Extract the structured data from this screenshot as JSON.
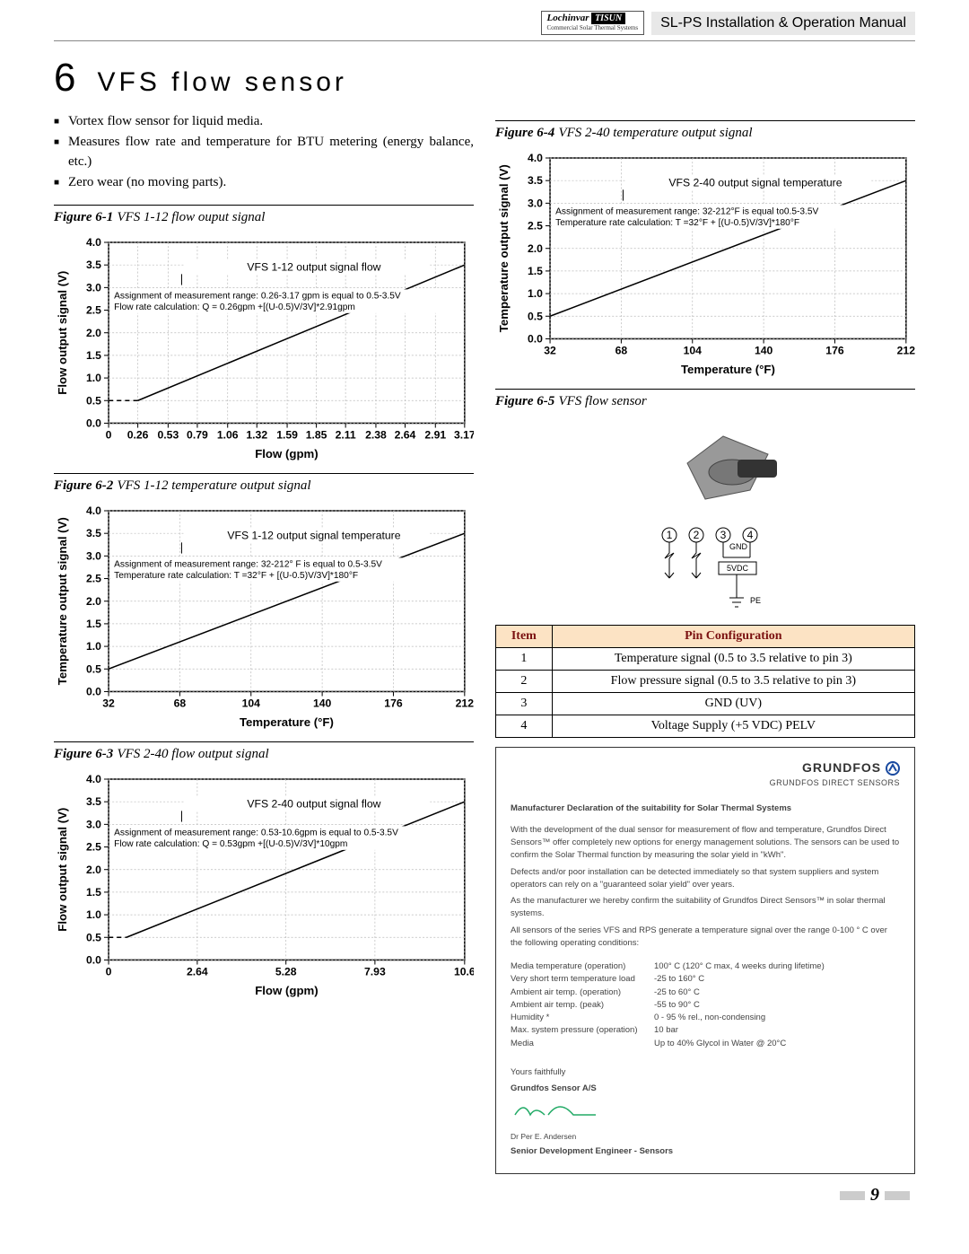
{
  "header": {
    "brand": "Lochinvar",
    "brand_sub": "Commercial Solar Thermal Systems",
    "tisun": "TISUN",
    "manual_title": "SL-PS Installation & Operation Manual"
  },
  "section": {
    "number": "6",
    "title": "VFS flow sensor"
  },
  "features": [
    "Vortex flow sensor for liquid media.",
    "Measures flow rate and temperature for BTU metering (energy balance, etc.)",
    "Zero wear (no moving parts)."
  ],
  "page_number": "9",
  "charts": {
    "c1": {
      "caption_bold": "Figure 6-1",
      "caption_italic": "VFS 1-12 flow ouput signal",
      "title_line": "VFS 1-12 output signal flow",
      "note1": "Assignment of measurement range: 0.26-3.17 gpm is equal to 0.5-3.5V",
      "note2": "Flow rate calculation: Q = 0.26gpm +[(U-0.5)V/3V]*2.91gpm",
      "xlabel": "Flow (gpm)",
      "ylabel": "Flow output signal (V)",
      "xticks": [
        "0",
        "0.26",
        "0.53",
        "0.79",
        "1.06",
        "1.32",
        "1.59",
        "1.85",
        "2.11",
        "2.38",
        "2.64",
        "2.91",
        "3.17"
      ],
      "yticks": [
        "0.0",
        "0.5",
        "1.0",
        "1.5",
        "2.0",
        "2.5",
        "3.0",
        "3.5",
        "4.0"
      ],
      "data": [
        [
          0.26,
          0.5
        ],
        [
          3.17,
          3.5
        ]
      ],
      "dash_extension": [
        [
          0,
          0.5
        ],
        [
          0.26,
          0.5
        ]
      ]
    },
    "c2": {
      "caption_bold": "Figure 6-2",
      "caption_italic": "VFS 1-12 temperature output signal",
      "title_line": "VFS 1-12 output signal temperature",
      "note1": "Assignment of measurement range: 32-212° F is equal to 0.5-3.5V",
      "note2": "Temperature rate calculation: T =32°F + [(U-0.5)V/3V]*180°F",
      "xlabel": "Temperature (°F)",
      "ylabel": "Temperature output signal (V)",
      "xticks": [
        "32",
        "68",
        "104",
        "140",
        "176",
        "212"
      ],
      "yticks": [
        "0.0",
        "0.5",
        "1.0",
        "1.5",
        "2.0",
        "2.5",
        "3.0",
        "3.5",
        "4.0"
      ],
      "data": [
        [
          32,
          0.5
        ],
        [
          212,
          3.5
        ]
      ]
    },
    "c3": {
      "caption_bold": "Figure 6-3",
      "caption_italic": "VFS 2-40 flow output signal",
      "title_line": "VFS 2-40 output signal flow",
      "note1": "Assignment of measurement range: 0.53-10.6gpm is equal to 0.5-3.5V",
      "note2": "Flow rate calculation: Q = 0.53gpm +[(U-0.5)V/3V]*10gpm",
      "xlabel": "Flow (gpm)",
      "ylabel": "Flow output signal (V)",
      "xticks": [
        "0",
        "2.64",
        "5.28",
        "7.93",
        "10.6"
      ],
      "yticks": [
        "0.0",
        "0.5",
        "1.0",
        "1.5",
        "2.0",
        "2.5",
        "3.0",
        "3.5",
        "4.0"
      ],
      "data": [
        [
          0.53,
          0.5
        ],
        [
          10.6,
          3.5
        ]
      ],
      "dash_extension": [
        [
          0,
          0.5
        ],
        [
          0.53,
          0.5
        ]
      ]
    },
    "c4": {
      "caption_bold": "Figure 6-4",
      "caption_italic": "VFS 2-40 temperature output signal",
      "title_line": "VFS 2-40 output signal temperature",
      "note1": "Assignment of measurement range: 32-212°F is equal to0.5-3.5V",
      "note2": "Temperature rate calculation: T =32°F + [(U-0.5)V/3V]*180°F",
      "xlabel": "Temperature (°F)",
      "ylabel": "Temperature output signal (V)",
      "xticks": [
        "32",
        "68",
        "104",
        "140",
        "176",
        "212"
      ],
      "yticks": [
        "0.0",
        "0.5",
        "1.0",
        "1.5",
        "2.0",
        "2.5",
        "3.0",
        "3.5",
        "4.0"
      ],
      "data": [
        [
          32,
          0.5
        ],
        [
          212,
          3.5
        ]
      ]
    }
  },
  "fig5": {
    "caption_bold": "Figure 6-5",
    "caption_italic": "VFS flow sensor",
    "pins": [
      "①",
      "②",
      "③",
      "④"
    ],
    "gnd": "GND",
    "vdc": "5VDC",
    "pe": "PE"
  },
  "pin_table": {
    "headers": [
      "Item",
      "Pin Configuration"
    ],
    "rows": [
      [
        "1",
        "Temperature signal (0.5 to 3.5 relative to pin 3)"
      ],
      [
        "2",
        "Flow pressure signal (0.5 to 3.5 relative to pin 3)"
      ],
      [
        "3",
        "GND (UV)"
      ],
      [
        "4",
        "Voltage Supply (+5 VDC) PELV"
      ]
    ]
  },
  "declaration": {
    "logo": "GRUNDFOS",
    "logo_sub": "GRUNDFOS DIRECT SENSORS",
    "title": "Manufacturer Declaration of the suitability for Solar Thermal Systems",
    "paras": [
      "With the development of the dual sensor for measurement of flow and temperature, Grundfos Direct Sensors™ offer completely new options for energy management solutions. The sensors can be used to confirm the Solar Thermal function by measuring the solar yield in \"kWh\".",
      "Defects and/or poor installation can be detected immediately so that system suppliers and system operators can rely on a \"guaranteed solar yield\" over years.",
      "As the manufacturer we hereby confirm the suitability of Grundfos Direct Sensors™ in solar thermal systems.",
      "All sensors of the series VFS and RPS generate a temperature signal over the range 0-100 ° C over the following operating conditions:"
    ],
    "specs": [
      [
        "Media temperature (operation)",
        "100° C (120° C max, 4 weeks during lifetime)"
      ],
      [
        "Very short term temperature load",
        "-25 to 160° C"
      ],
      [
        "Ambient air temp. (operation)",
        "-25 to 60° C"
      ],
      [
        "Ambient air temp. (peak)",
        "-55 to 90° C"
      ],
      [
        "Humidity *",
        "0 - 95 % rel., non-condensing"
      ],
      [
        "Max. system pressure (operation)",
        "10 bar"
      ],
      [
        "Media",
        "Up to 40% Glycol in Water @ 20°C"
      ]
    ],
    "signoff": "Yours faithfully",
    "company": "Grundfos Sensor A/S",
    "name": "Dr Per E. Andersen",
    "role": "Senior Development Engineer - Sensors"
  }
}
